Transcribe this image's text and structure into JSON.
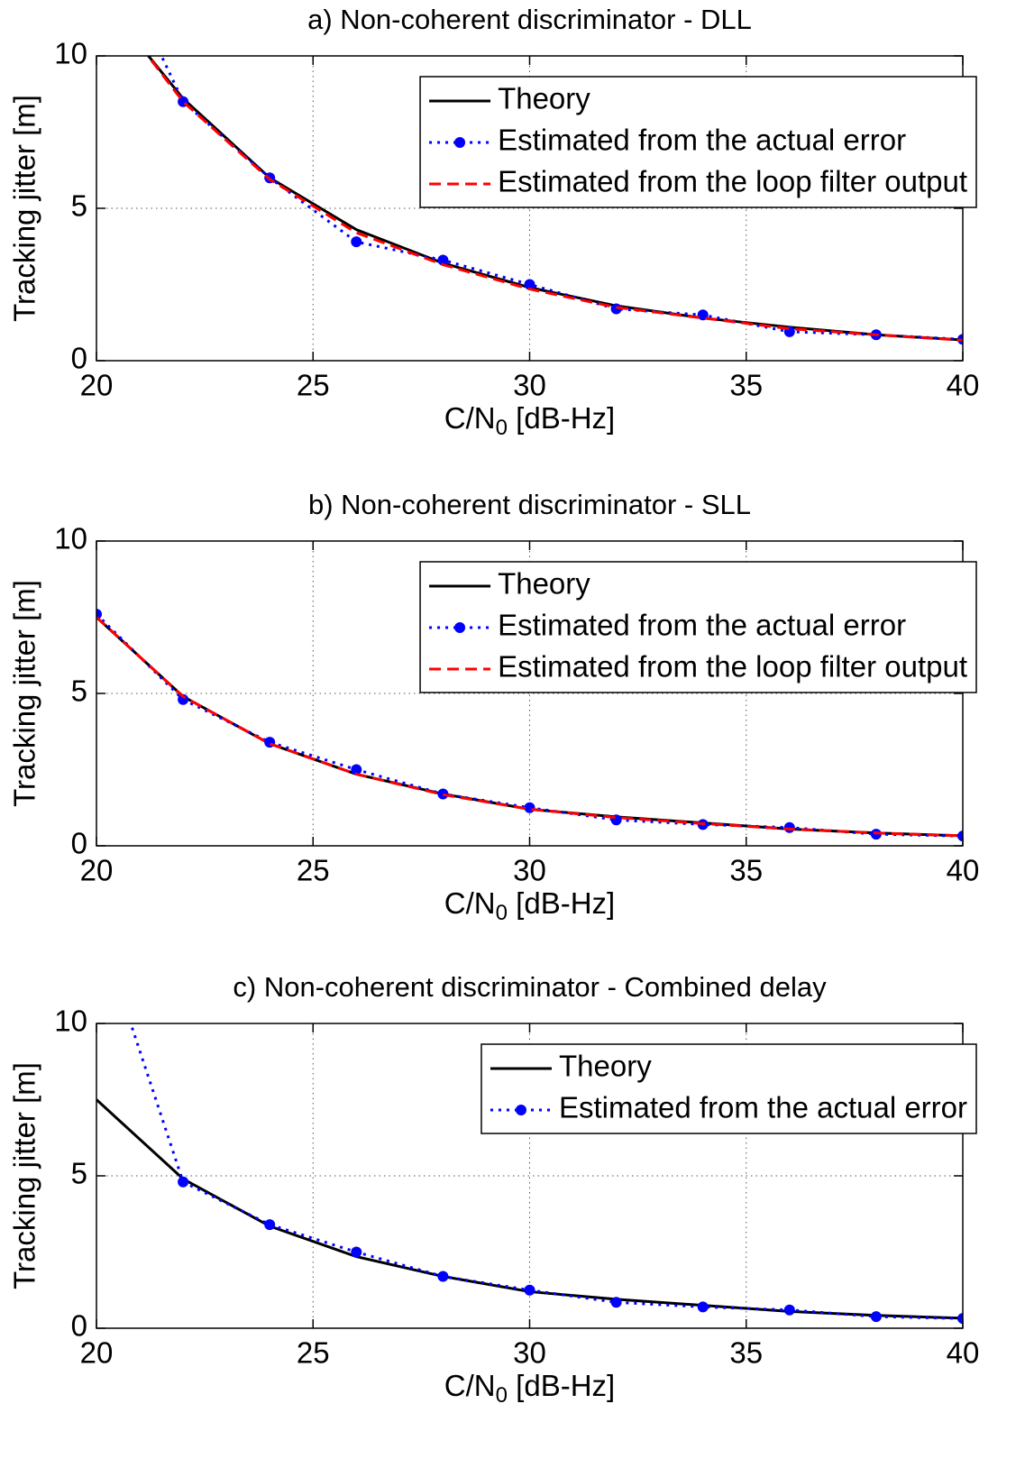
{
  "chart_data": [
    {
      "type": "line",
      "title": "a) Non-coherent discriminator - DLL",
      "xlabel": [
        "C/N",
        "0",
        " [dB-Hz]"
      ],
      "ylabel": "Tracking jitter [m]",
      "x": [
        20,
        22,
        24,
        26,
        28,
        30,
        32,
        34,
        36,
        38,
        40
      ],
      "xlim": [
        20,
        40
      ],
      "xticks": [
        20,
        25,
        30,
        35,
        40
      ],
      "ylim": [
        0,
        10
      ],
      "yticks": [
        0,
        5,
        10
      ],
      "grid": true,
      "legend": "upper right",
      "series": [
        {
          "name": "Theory",
          "color": "#000000",
          "dash": "solid",
          "marker": "none",
          "values": [
            12.1,
            8.6,
            6.0,
            4.3,
            3.2,
            2.4,
            1.8,
            1.4,
            1.1,
            0.85,
            0.68
          ]
        },
        {
          "name": "Estimated from the actual error",
          "color": "#0000ff",
          "dash": "dotted",
          "marker": "o",
          "values": [
            14.5,
            8.5,
            6.0,
            3.9,
            3.3,
            2.5,
            1.7,
            1.5,
            0.95,
            0.85,
            0.7
          ]
        },
        {
          "name": "Estimated from the loop filter output",
          "color": "#ff0000",
          "dash": "dashed",
          "marker": "none",
          "values": [
            12.2,
            8.5,
            5.95,
            4.2,
            3.15,
            2.35,
            1.75,
            1.4,
            1.05,
            0.85,
            0.67
          ]
        }
      ]
    },
    {
      "type": "line",
      "title": "b) Non-coherent discriminator - SLL",
      "xlabel": [
        "C/N",
        "0",
        " [dB-Hz]"
      ],
      "ylabel": "Tracking jitter [m]",
      "x": [
        20,
        22,
        24,
        26,
        28,
        30,
        32,
        34,
        36,
        38,
        40
      ],
      "xlim": [
        20,
        40
      ],
      "xticks": [
        20,
        25,
        30,
        35,
        40
      ],
      "ylim": [
        0,
        10
      ],
      "yticks": [
        0,
        5,
        10
      ],
      "grid": true,
      "legend": "upper right",
      "series": [
        {
          "name": "Theory",
          "color": "#000000",
          "dash": "solid",
          "marker": "none",
          "values": [
            7.5,
            4.9,
            3.35,
            2.35,
            1.7,
            1.2,
            0.95,
            0.75,
            0.55,
            0.42,
            0.33
          ]
        },
        {
          "name": "Estimated from the actual error",
          "color": "#0000ff",
          "dash": "dotted",
          "marker": "o",
          "values": [
            7.6,
            4.8,
            3.4,
            2.5,
            1.7,
            1.25,
            0.85,
            0.7,
            0.6,
            0.38,
            0.32
          ]
        },
        {
          "name": "Estimated from the loop filter output",
          "color": "#ff0000",
          "dash": "dashed",
          "marker": "none",
          "values": [
            7.5,
            4.9,
            3.35,
            2.35,
            1.68,
            1.2,
            0.93,
            0.73,
            0.55,
            0.42,
            0.33
          ]
        }
      ]
    },
    {
      "type": "line",
      "title": "c) Non-coherent discriminator - Combined delay",
      "xlabel": [
        "C/N",
        "0",
        " [dB-Hz]"
      ],
      "ylabel": "Tracking jitter [m]",
      "x": [
        20,
        22,
        24,
        26,
        28,
        30,
        32,
        34,
        36,
        38,
        40
      ],
      "xlim": [
        20,
        40
      ],
      "xticks": [
        20,
        25,
        30,
        35,
        40
      ],
      "ylim": [
        0,
        10
      ],
      "yticks": [
        0,
        5,
        10
      ],
      "grid": true,
      "legend": "upper right",
      "series": [
        {
          "name": "Theory",
          "color": "#000000",
          "dash": "solid",
          "marker": "none",
          "values": [
            7.5,
            4.9,
            3.35,
            2.35,
            1.7,
            1.2,
            0.95,
            0.75,
            0.55,
            0.42,
            0.33
          ]
        },
        {
          "name": "Estimated from the actual error",
          "color": "#0000ff",
          "dash": "dotted",
          "marker": "o",
          "values": [
            13.4,
            4.8,
            3.4,
            2.5,
            1.7,
            1.25,
            0.85,
            0.7,
            0.6,
            0.38,
            0.32
          ]
        }
      ]
    }
  ]
}
